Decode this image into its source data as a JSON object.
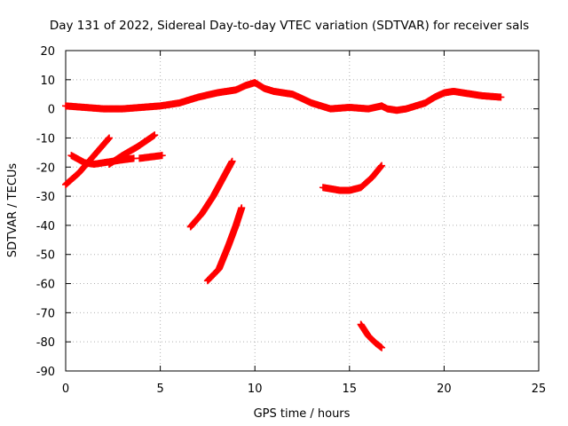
{
  "chart_data": {
    "type": "scatter",
    "title": "Day 131 of 2022, Sidereal Day-to-day VTEC variation (SDTVAR) for receiver sals",
    "xlabel": "GPS time / hours",
    "ylabel": "SDTVAR / TECUs",
    "xlim": [
      0,
      25
    ],
    "ylim": [
      -90,
      20
    ],
    "x_ticks": [
      0,
      5,
      10,
      15,
      20,
      25
    ],
    "y_ticks": [
      20,
      10,
      0,
      -10,
      -20,
      -30,
      -40,
      -50,
      -60,
      -70,
      -80,
      -90
    ],
    "grid": true,
    "marker_color": "#ff0000",
    "marker": "plus",
    "series": [
      {
        "points": [
          [
            0,
            1
          ],
          [
            1,
            0.5
          ],
          [
            2,
            0
          ],
          [
            3,
            0
          ],
          [
            4,
            0.5
          ],
          [
            5,
            1
          ],
          [
            6,
            2
          ],
          [
            7,
            4
          ],
          [
            8,
            5.5
          ],
          [
            9,
            6.5
          ],
          [
            9.5,
            8
          ],
          [
            10,
            9
          ],
          [
            10.5,
            7
          ],
          [
            11,
            6
          ],
          [
            12,
            5
          ],
          [
            13,
            2
          ],
          [
            14,
            0
          ],
          [
            15,
            0.5
          ],
          [
            16,
            0
          ],
          [
            16.7,
            1
          ]
        ]
      },
      {
        "points": [
          [
            0.3,
            -16
          ],
          [
            1,
            -18.5
          ],
          [
            1.5,
            -19
          ],
          [
            2,
            -18.5
          ],
          [
            3,
            -17.5
          ],
          [
            3.6,
            -17
          ]
        ]
      },
      {
        "points": [
          [
            0,
            -26
          ],
          [
            0.7,
            -22
          ],
          [
            1.5,
            -16
          ],
          [
            2.3,
            -10
          ]
        ]
      },
      {
        "points": [
          [
            2.3,
            -19
          ],
          [
            3,
            -16
          ],
          [
            3.8,
            -13
          ],
          [
            4.7,
            -9
          ]
        ]
      },
      {
        "points": [
          [
            3.9,
            -17
          ],
          [
            4.5,
            -16.5
          ],
          [
            5.1,
            -16
          ]
        ]
      },
      {
        "points": [
          [
            6.6,
            -40.5
          ],
          [
            7.2,
            -36
          ],
          [
            7.8,
            -30
          ],
          [
            8.3,
            -24
          ],
          [
            8.8,
            -18
          ]
        ]
      },
      {
        "points": [
          [
            7.5,
            -59
          ],
          [
            8.1,
            -55
          ],
          [
            8.6,
            -47
          ],
          [
            9,
            -40
          ],
          [
            9.3,
            -34
          ]
        ]
      },
      {
        "points": [
          [
            16.7,
            1
          ],
          [
            17,
            0
          ],
          [
            17.5,
            -0.5
          ],
          [
            18,
            0
          ],
          [
            19,
            2
          ],
          [
            19.5,
            4
          ],
          [
            20,
            5.5
          ],
          [
            20.5,
            6
          ],
          [
            21,
            5.5
          ],
          [
            22,
            4.5
          ],
          [
            23,
            4
          ]
        ]
      },
      {
        "points": [
          [
            13.6,
            -27
          ],
          [
            14.5,
            -28
          ],
          [
            15,
            -28
          ],
          [
            15.6,
            -27
          ],
          [
            16.2,
            -23.5
          ],
          [
            16.7,
            -19.5
          ]
        ]
      },
      {
        "points": [
          [
            15.6,
            -74
          ],
          [
            16,
            -78
          ],
          [
            16.4,
            -80.5
          ],
          [
            16.7,
            -82
          ]
        ]
      }
    ]
  }
}
